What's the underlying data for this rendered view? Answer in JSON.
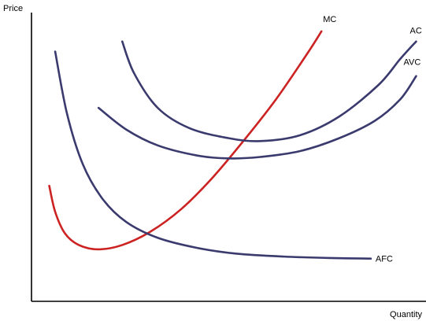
{
  "chart_data": {
    "type": "line",
    "title": "",
    "xlabel": "Quantity",
    "ylabel": "Price",
    "xlim": [
      0,
      10
    ],
    "ylim": [
      0,
      10
    ],
    "grid": false,
    "legend": "none",
    "axis_ticks": false,
    "series": [
      {
        "name": "MC",
        "color": "#cc2222",
        "points": [
          [
            0.45,
            4.0
          ],
          [
            0.6,
            3.1
          ],
          [
            0.85,
            2.35
          ],
          [
            1.2,
            1.95
          ],
          [
            1.7,
            1.8
          ],
          [
            2.3,
            1.95
          ],
          [
            3.0,
            2.4
          ],
          [
            3.8,
            3.2
          ],
          [
            4.6,
            4.3
          ],
          [
            5.4,
            5.6
          ],
          [
            6.2,
            7.0
          ],
          [
            7.0,
            8.6
          ],
          [
            7.35,
            9.35
          ]
        ]
      },
      {
        "name": "AC",
        "color": "#3a3a6e",
        "points": [
          [
            2.3,
            9.0
          ],
          [
            2.6,
            7.9
          ],
          [
            3.2,
            6.7
          ],
          [
            4.0,
            6.0
          ],
          [
            5.0,
            5.65
          ],
          [
            5.8,
            5.55
          ],
          [
            6.8,
            5.75
          ],
          [
            7.8,
            6.4
          ],
          [
            8.8,
            7.5
          ],
          [
            9.35,
            8.4
          ],
          [
            9.75,
            9.0
          ]
        ]
      },
      {
        "name": "AVC",
        "color": "#3a3a6e",
        "points": [
          [
            1.7,
            6.7
          ],
          [
            2.4,
            5.95
          ],
          [
            3.2,
            5.4
          ],
          [
            4.2,
            5.05
          ],
          [
            5.0,
            4.95
          ],
          [
            5.8,
            5.0
          ],
          [
            6.8,
            5.2
          ],
          [
            7.8,
            5.65
          ],
          [
            8.7,
            6.25
          ],
          [
            9.35,
            7.0
          ],
          [
            9.75,
            7.8
          ]
        ]
      },
      {
        "name": "AFC",
        "color": "#3a3a6e",
        "points": [
          [
            0.6,
            8.65
          ],
          [
            0.9,
            6.5
          ],
          [
            1.3,
            4.75
          ],
          [
            1.8,
            3.55
          ],
          [
            2.4,
            2.75
          ],
          [
            3.2,
            2.2
          ],
          [
            4.2,
            1.85
          ],
          [
            5.2,
            1.65
          ],
          [
            6.4,
            1.55
          ],
          [
            7.6,
            1.5
          ],
          [
            8.6,
            1.48
          ]
        ]
      }
    ]
  }
}
